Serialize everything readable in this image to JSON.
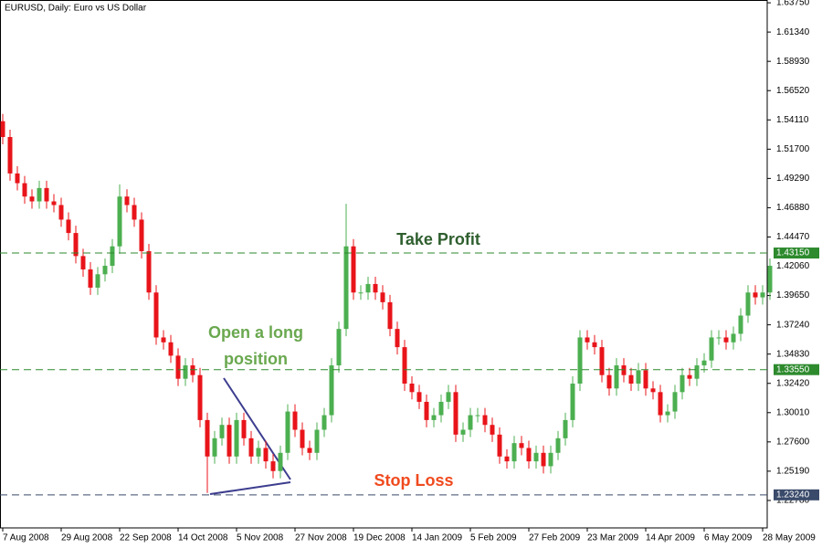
{
  "chart_data": {
    "type": "candlestick",
    "title": "EURUSD, Daily:  Euro vs US Dollar",
    "categories": [
      "7 Aug 2008",
      null,
      null,
      null,
      null,
      null,
      null,
      null,
      "29 Aug 2008",
      null,
      null,
      null,
      null,
      null,
      null,
      null,
      "22 Sep 2008",
      null,
      null,
      null,
      null,
      null,
      null,
      null,
      "14 Oct 2008",
      null,
      null,
      null,
      null,
      null,
      null,
      null,
      "5 Nov 2008",
      null,
      null,
      null,
      null,
      null,
      null,
      null,
      "27 Nov 2008",
      null,
      null,
      null,
      null,
      null,
      null,
      null,
      "19 Dec 2008",
      null,
      null,
      null,
      null,
      null,
      null,
      null,
      "14 Jan 2009",
      null,
      null,
      null,
      null,
      null,
      null,
      null,
      "5 Feb 2009",
      null,
      null,
      null,
      null,
      null,
      null,
      null,
      "27 Feb 2009",
      null,
      null,
      null,
      null,
      null,
      null,
      null,
      "23 Mar 2009",
      null,
      null,
      null,
      null,
      null,
      null,
      null,
      "14 Apr 2009",
      null,
      null,
      null,
      null,
      null,
      null,
      null,
      "6 May 2009",
      null,
      null,
      null,
      null,
      null,
      null,
      null,
      "28 May 2009",
      null
    ],
    "open": [
      1.54,
      1.527,
      1.497,
      1.489,
      1.478,
      1.474,
      1.485,
      1.474,
      1.471,
      1.459,
      1.448,
      1.429,
      1.418,
      1.403,
      1.414,
      1.421,
      1.437,
      1.478,
      1.471,
      1.459,
      1.433,
      1.399,
      1.362,
      1.358,
      1.347,
      1.328,
      1.339,
      1.331,
      1.294,
      1.264,
      1.279,
      1.29,
      1.264,
      1.294,
      1.279,
      1.264,
      1.271,
      1.26,
      1.252,
      1.267,
      1.301,
      1.286,
      1.271,
      1.267,
      1.286,
      1.298,
      1.339,
      1.369,
      1.437,
      1.399,
      1.399,
      1.406,
      1.399,
      1.391,
      1.369,
      1.354,
      1.324,
      1.317,
      1.309,
      1.294,
      1.298,
      1.309,
      1.317,
      1.282,
      1.286,
      1.298,
      1.298,
      1.29,
      1.282,
      1.264,
      1.26,
      1.275,
      1.271,
      1.26,
      1.267,
      1.256,
      1.267,
      1.279,
      1.294,
      1.324,
      1.362,
      1.358,
      1.354,
      1.331,
      1.32,
      1.339,
      1.331,
      1.324,
      1.335,
      1.32,
      1.317,
      1.298,
      1.301,
      1.317,
      1.331,
      1.328,
      1.339,
      1.343,
      1.362,
      1.362,
      1.358,
      1.365,
      1.38,
      1.399,
      1.395,
      1.399
    ],
    "high": [
      1.546,
      1.533,
      1.503,
      1.495,
      1.484,
      1.491,
      1.491,
      1.48,
      1.477,
      1.465,
      1.454,
      1.435,
      1.424,
      1.42,
      1.427,
      1.443,
      1.488,
      1.484,
      1.477,
      1.465,
      1.439,
      1.405,
      1.368,
      1.364,
      1.353,
      1.345,
      1.345,
      1.337,
      1.3,
      1.285,
      1.296,
      1.296,
      1.3,
      1.3,
      1.285,
      1.277,
      1.277,
      1.266,
      1.273,
      1.307,
      1.307,
      1.292,
      1.277,
      1.292,
      1.304,
      1.345,
      1.375,
      1.472,
      1.443,
      1.405,
      1.412,
      1.412,
      1.405,
      1.397,
      1.375,
      1.36,
      1.33,
      1.323,
      1.315,
      1.304,
      1.315,
      1.323,
      1.323,
      1.292,
      1.304,
      1.304,
      1.304,
      1.296,
      1.288,
      1.27,
      1.281,
      1.281,
      1.277,
      1.273,
      1.273,
      1.273,
      1.285,
      1.3,
      1.33,
      1.368,
      1.368,
      1.364,
      1.36,
      1.337,
      1.345,
      1.345,
      1.337,
      1.341,
      1.341,
      1.326,
      1.323,
      1.307,
      1.323,
      1.337,
      1.337,
      1.345,
      1.349,
      1.368,
      1.368,
      1.368,
      1.371,
      1.386,
      1.405,
      1.405,
      1.405,
      1.427
    ],
    "low": [
      1.521,
      1.491,
      1.483,
      1.472,
      1.468,
      1.468,
      1.468,
      1.465,
      1.453,
      1.442,
      1.423,
      1.412,
      1.397,
      1.397,
      1.408,
      1.415,
      1.431,
      1.465,
      1.453,
      1.427,
      1.393,
      1.356,
      1.352,
      1.341,
      1.322,
      1.322,
      1.325,
      1.288,
      1.234,
      1.258,
      1.273,
      1.258,
      1.258,
      1.273,
      1.258,
      1.258,
      1.254,
      1.246,
      1.246,
      1.261,
      1.28,
      1.265,
      1.261,
      1.261,
      1.28,
      1.292,
      1.333,
      1.363,
      1.393,
      1.393,
      1.393,
      1.393,
      1.385,
      1.363,
      1.348,
      1.318,
      1.311,
      1.303,
      1.288,
      1.288,
      1.292,
      1.303,
      1.276,
      1.276,
      1.28,
      1.292,
      1.284,
      1.276,
      1.258,
      1.254,
      1.254,
      1.265,
      1.254,
      1.254,
      1.25,
      1.25,
      1.261,
      1.273,
      1.288,
      1.318,
      1.352,
      1.348,
      1.325,
      1.314,
      1.314,
      1.325,
      1.318,
      1.318,
      1.314,
      1.311,
      1.292,
      1.292,
      1.295,
      1.311,
      1.322,
      1.322,
      1.333,
      1.337,
      1.356,
      1.352,
      1.352,
      1.359,
      1.374,
      1.389,
      1.389,
      1.393
    ],
    "close": [
      1.527,
      1.497,
      1.489,
      1.478,
      1.474,
      1.485,
      1.474,
      1.471,
      1.459,
      1.448,
      1.429,
      1.418,
      1.403,
      1.414,
      1.421,
      1.437,
      1.478,
      1.471,
      1.459,
      1.433,
      1.399,
      1.362,
      1.358,
      1.347,
      1.328,
      1.339,
      1.331,
      1.294,
      1.264,
      1.279,
      1.29,
      1.264,
      1.294,
      1.279,
      1.264,
      1.271,
      1.26,
      1.252,
      1.267,
      1.301,
      1.286,
      1.271,
      1.267,
      1.286,
      1.298,
      1.339,
      1.369,
      1.437,
      1.399,
      1.399,
      1.406,
      1.399,
      1.391,
      1.369,
      1.354,
      1.324,
      1.317,
      1.309,
      1.294,
      1.298,
      1.309,
      1.317,
      1.282,
      1.286,
      1.298,
      1.298,
      1.29,
      1.282,
      1.264,
      1.26,
      1.275,
      1.271,
      1.26,
      1.267,
      1.256,
      1.267,
      1.279,
      1.294,
      1.324,
      1.362,
      1.358,
      1.354,
      1.331,
      1.32,
      1.339,
      1.331,
      1.324,
      1.335,
      1.32,
      1.317,
      1.298,
      1.301,
      1.317,
      1.331,
      1.328,
      1.339,
      1.343,
      1.362,
      1.362,
      1.358,
      1.365,
      1.38,
      1.399,
      1.395,
      1.399,
      1.421
    ],
    "up_color": "#4caf50",
    "down_color": "#e8141a",
    "ylim": [
      1.2052,
      1.6398
    ],
    "yticks": [
      {
        "value": 1.6375,
        "label": "1.63750"
      },
      {
        "value": 1.6134,
        "label": "1.61340"
      },
      {
        "value": 1.5893,
        "label": "1.58930"
      },
      {
        "value": 1.5652,
        "label": "1.56520"
      },
      {
        "value": 1.5411,
        "label": "1.54110"
      },
      {
        "value": 1.517,
        "label": "1.51700"
      },
      {
        "value": 1.4929,
        "label": "1.49290"
      },
      {
        "value": 1.4688,
        "label": "1.46880"
      },
      {
        "value": 1.4447,
        "label": "1.44470"
      },
      {
        "value": 1.4206,
        "label": "1.42060"
      },
      {
        "value": 1.3965,
        "label": "1.39650"
      },
      {
        "value": 1.3724,
        "label": "1.37240"
      },
      {
        "value": 1.3483,
        "label": "1.34830"
      },
      {
        "value": 1.3242,
        "label": "1.32420"
      },
      {
        "value": 1.3001,
        "label": "1.30010"
      },
      {
        "value": 1.276,
        "label": "1.27600"
      },
      {
        "value": 1.2519,
        "label": "1.25190"
      },
      {
        "value": 1.2278,
        "label": "1.22780"
      }
    ],
    "grid": false,
    "levels": [
      {
        "value": 1.4315,
        "label": "1.43150",
        "name": "Take Profit",
        "color": "#2d8a2d",
        "text_color": "#2f5f2f"
      },
      {
        "value": 1.3355,
        "label": "1.33550",
        "name": "Open a long position",
        "color": "#2d8a2d",
        "text_color": "#6aa84f"
      },
      {
        "value": 1.2324,
        "label": "1.23240",
        "name": "Stop Loss",
        "color": "#3a4a6a",
        "text_color": "#f04a1e"
      }
    ]
  }
}
